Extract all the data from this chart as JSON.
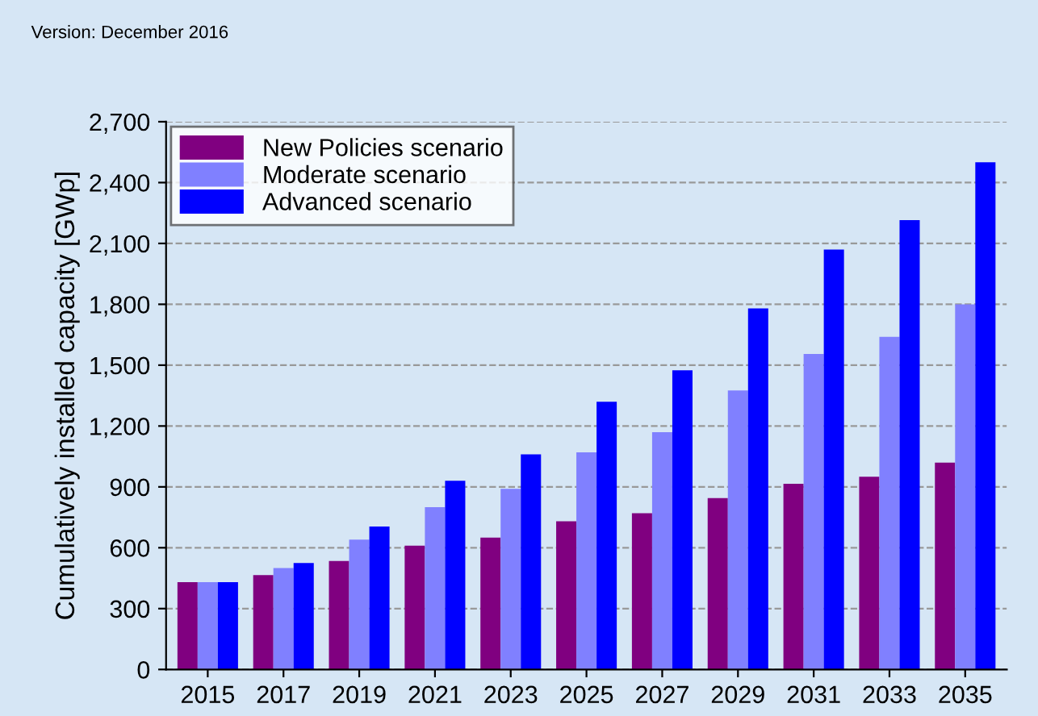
{
  "chart_data": {
    "type": "bar",
    "ylabel": "Cumulatively installed capacity [GWp]",
    "annotations": [
      "Version: December 2016"
    ],
    "categories": [
      "2015",
      "2017",
      "2019",
      "2021",
      "2023",
      "2025",
      "2027",
      "2029",
      "2031",
      "2033",
      "2035"
    ],
    "series": [
      {
        "name": "New Policies scenario",
        "color": "#800080",
        "values": [
          430,
          465,
          535,
          610,
          650,
          730,
          770,
          845,
          915,
          950,
          1020
        ]
      },
      {
        "name": "Moderate scenario",
        "color": "#8080ff",
        "values": [
          430,
          500,
          640,
          800,
          890,
          1070,
          1170,
          1375,
          1555,
          1640,
          1800
        ]
      },
      {
        "name": "Advanced scenario",
        "color": "#0000ff",
        "values": [
          430,
          525,
          705,
          930,
          1060,
          1320,
          1475,
          1780,
          2070,
          2215,
          2500
        ]
      }
    ],
    "ylim": [
      0,
      2700
    ],
    "yticks": [
      {
        "value": 0,
        "label": "0"
      },
      {
        "value": 300,
        "label": "300"
      },
      {
        "value": 600,
        "label": "600"
      },
      {
        "value": 900,
        "label": "900"
      },
      {
        "value": 1200,
        "label": "1,200"
      },
      {
        "value": 1500,
        "label": "1,500"
      },
      {
        "value": 1800,
        "label": "1,800"
      },
      {
        "value": 2100,
        "label": "2,100"
      },
      {
        "value": 2400,
        "label": "2,400"
      },
      {
        "value": 2700,
        "label": "2,700"
      }
    ],
    "grid": "y",
    "legend": "top left"
  }
}
